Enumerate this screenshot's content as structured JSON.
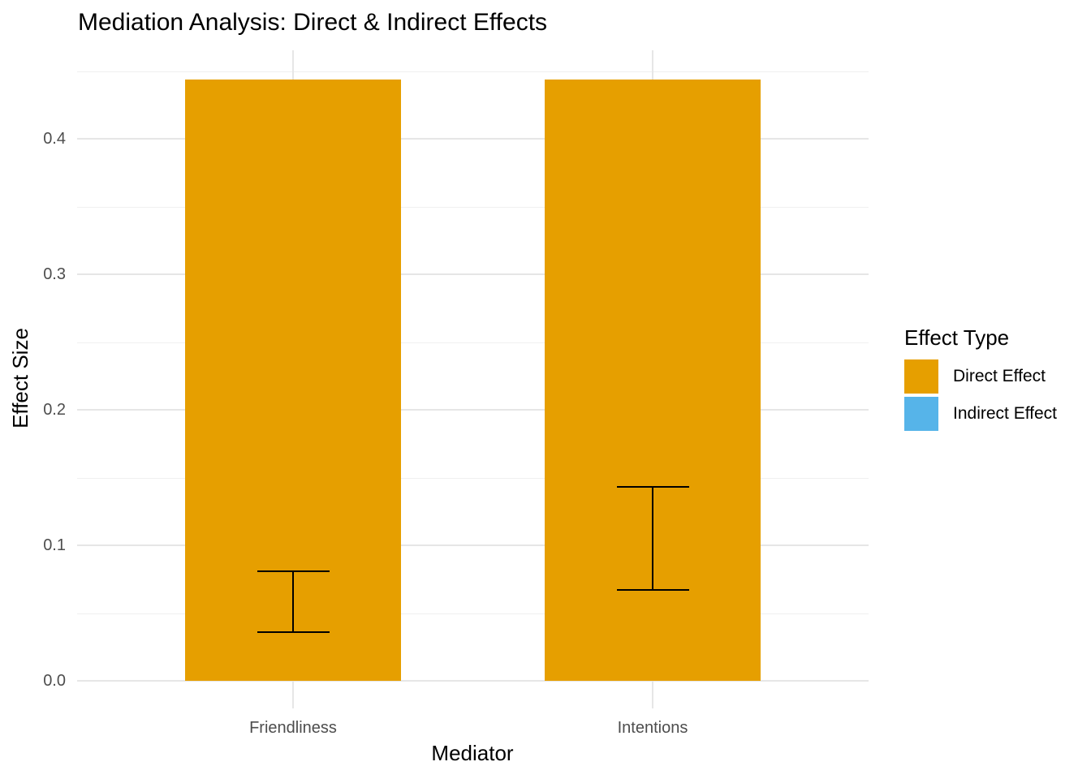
{
  "chart_data": {
    "type": "bar",
    "title": "Mediation Analysis: Direct & Indirect Effects",
    "xlabel": "Mediator",
    "ylabel": "Effect Size",
    "categories": [
      "Friendliness",
      "Intentions"
    ],
    "series": [
      {
        "name": "Direct Effect",
        "color": "#E69F00",
        "values": [
          0.444,
          0.444
        ]
      }
    ],
    "error_bars": [
      {
        "category": "Friendliness",
        "ymin": 0.036,
        "ymax": 0.081
      },
      {
        "category": "Intentions",
        "ymin": 0.067,
        "ymax": 0.143
      }
    ],
    "y_ticks": [
      {
        "value": 0.0,
        "label": "0.0"
      },
      {
        "value": 0.1,
        "label": "0.1"
      },
      {
        "value": 0.2,
        "label": "0.2"
      },
      {
        "value": 0.3,
        "label": "0.3"
      },
      {
        "value": 0.4,
        "label": "0.4"
      }
    ],
    "y_minor": [
      0.05,
      0.15,
      0.25,
      0.35,
      0.45
    ],
    "ylim": [
      -0.02,
      0.466
    ],
    "grid": {
      "horizontal_major": true,
      "horizontal_minor": true,
      "vertical_at_categories": true
    },
    "legend": {
      "title": "Effect Type",
      "position": "right",
      "entries": [
        {
          "label": "Direct Effect",
          "color": "#E69F00"
        },
        {
          "label": "Indirect Effect",
          "color": "#56B4E9"
        }
      ]
    },
    "style": {
      "bar_color": "#E69F00",
      "errorbar_color": "#000000",
      "grid_major_color": "#E6E6E6",
      "grid_minor_color": "#F0F0F0",
      "axis_text_color": "#4D4D4D",
      "title_color": "#000000",
      "background": "#FFFFFF"
    }
  }
}
